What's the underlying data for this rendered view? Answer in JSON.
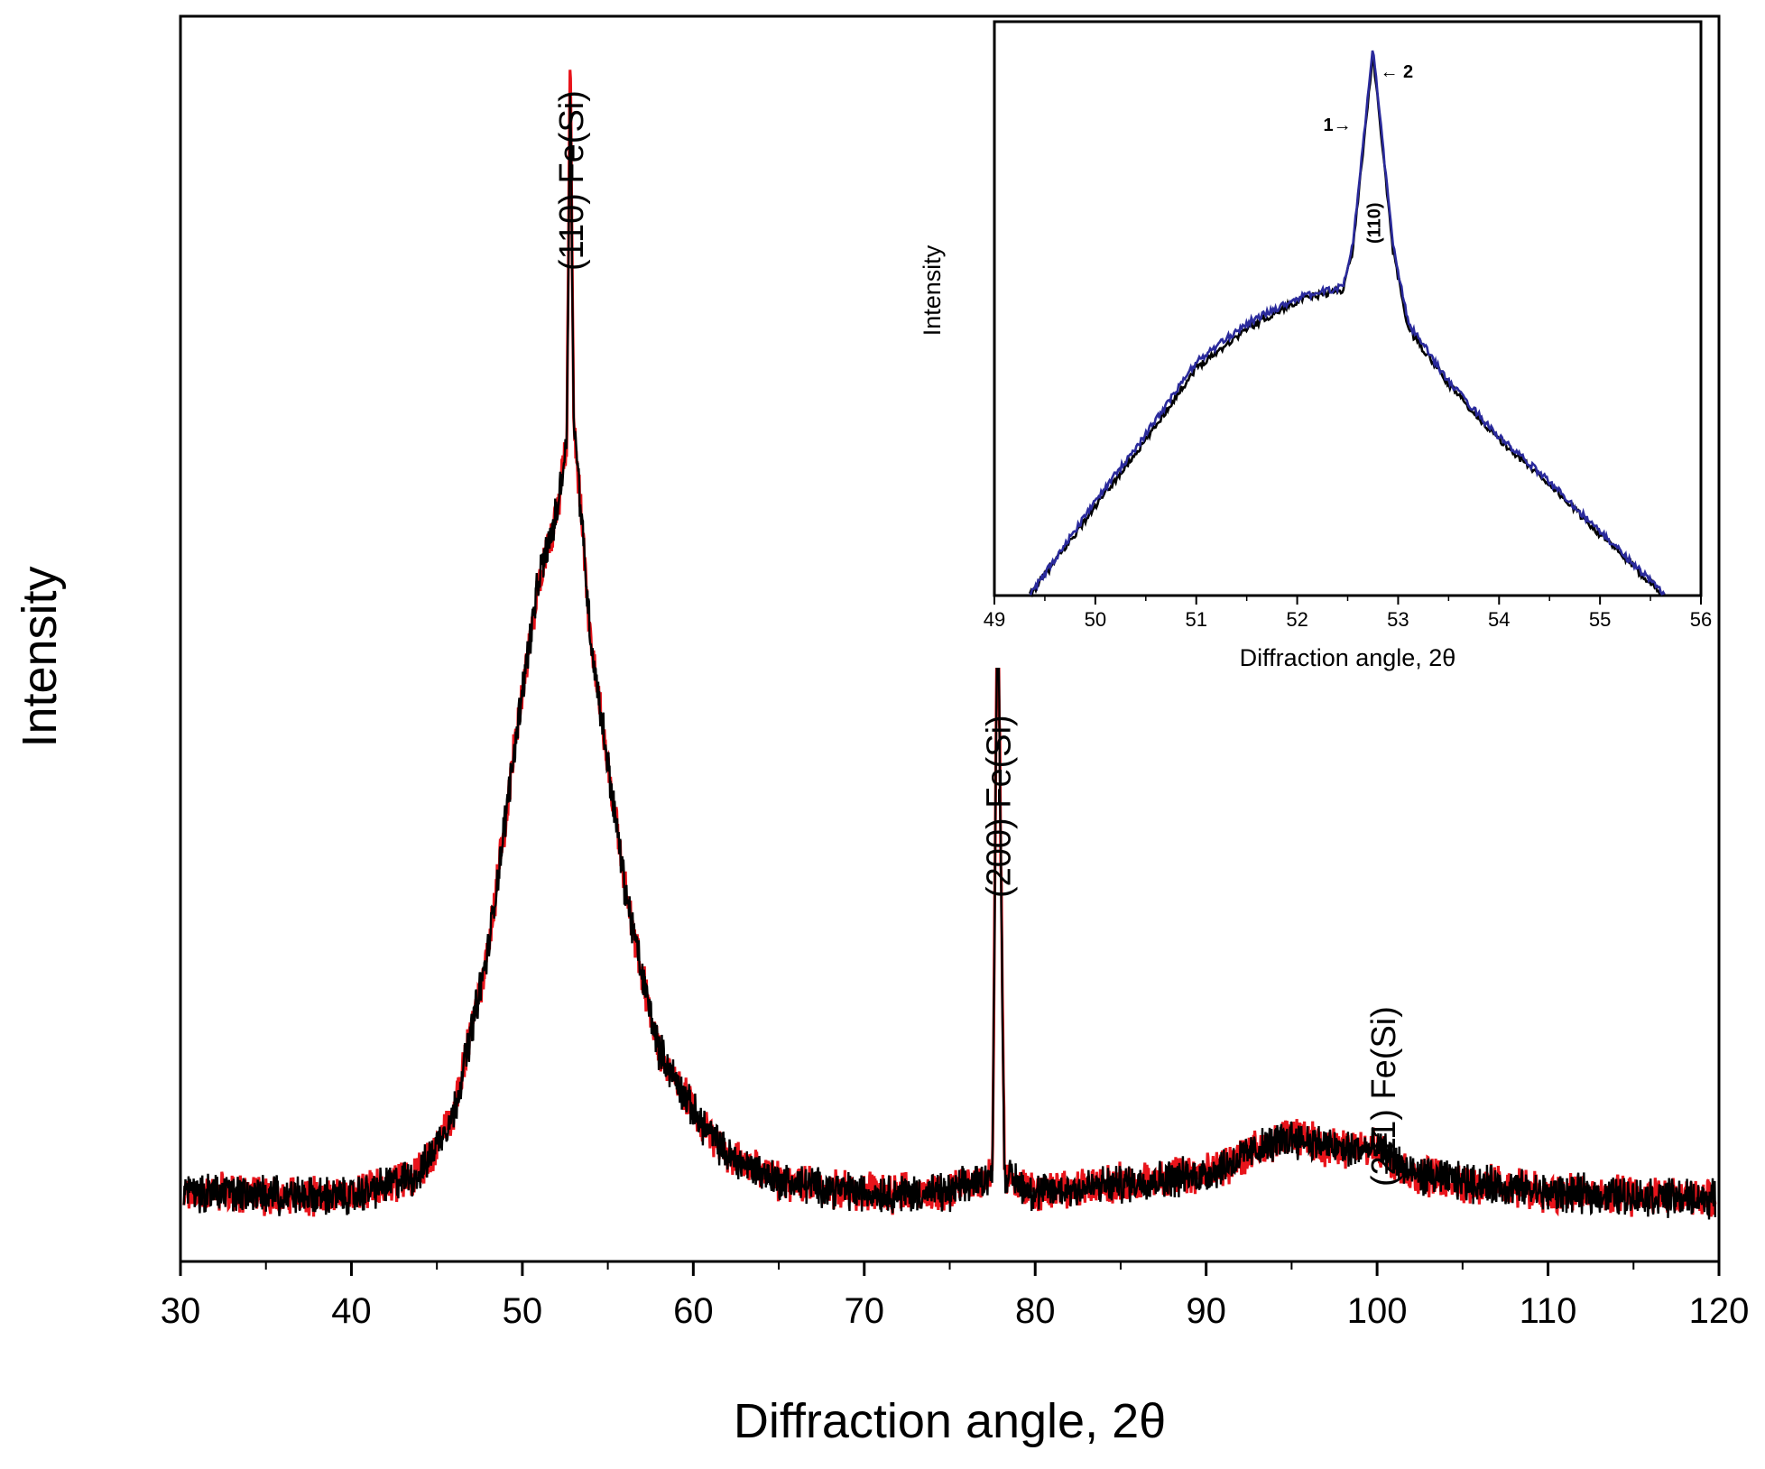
{
  "chart_data": [
    {
      "id": "main",
      "type": "line",
      "xlabel": "Diffraction angle, 2θ",
      "ylabel": "Intensity",
      "xlim": [
        30,
        120
      ],
      "ylim": [
        0,
        1
      ],
      "x_ticks": [
        30,
        40,
        50,
        60,
        70,
        80,
        90,
        100,
        110,
        120
      ],
      "y_ticks_shown": false,
      "grid": false,
      "series": [
        {
          "name": "red",
          "color": "#e8141b",
          "points": [
            [
              30,
              0.055
            ],
            [
              40,
              0.052
            ],
            [
              44,
              0.07
            ],
            [
              46,
              0.12
            ],
            [
              48,
              0.25
            ],
            [
              50,
              0.46
            ],
            [
              51,
              0.55
            ],
            [
              52,
              0.6
            ],
            [
              52.6,
              0.66
            ],
            [
              52.8,
              0.98
            ],
            [
              53,
              0.68
            ],
            [
              54,
              0.5
            ],
            [
              55,
              0.4
            ],
            [
              56,
              0.3
            ],
            [
              57,
              0.23
            ],
            [
              58,
              0.17
            ],
            [
              60,
              0.12
            ],
            [
              62,
              0.085
            ],
            [
              65,
              0.065
            ],
            [
              70,
              0.055
            ],
            [
              75,
              0.055
            ],
            [
              77.5,
              0.07
            ],
            [
              77.8,
              0.57
            ],
            [
              78.2,
              0.07
            ],
            [
              80,
              0.055
            ],
            [
              90,
              0.07
            ],
            [
              93,
              0.09
            ],
            [
              95,
              0.1
            ],
            [
              98,
              0.09
            ],
            [
              100.3,
              0.09
            ],
            [
              102,
              0.07
            ],
            [
              110,
              0.055
            ],
            [
              120,
              0.05
            ]
          ]
        },
        {
          "name": "black",
          "color": "#000000",
          "points": [
            [
              30,
              0.055
            ],
            [
              40,
              0.052
            ],
            [
              44,
              0.07
            ],
            [
              46,
              0.12
            ],
            [
              48,
              0.25
            ],
            [
              50,
              0.46
            ],
            [
              51,
              0.55
            ],
            [
              52,
              0.6
            ],
            [
              52.6,
              0.66
            ],
            [
              52.8,
              0.96
            ],
            [
              53,
              0.68
            ],
            [
              54,
              0.5
            ],
            [
              55,
              0.4
            ],
            [
              56,
              0.3
            ],
            [
              57,
              0.23
            ],
            [
              58,
              0.17
            ],
            [
              60,
              0.12
            ],
            [
              62,
              0.085
            ],
            [
              65,
              0.065
            ],
            [
              70,
              0.055
            ],
            [
              75,
              0.055
            ],
            [
              77.5,
              0.07
            ],
            [
              77.8,
              0.56
            ],
            [
              78.2,
              0.07
            ],
            [
              80,
              0.055
            ],
            [
              90,
              0.07
            ],
            [
              93,
              0.09
            ],
            [
              95,
              0.1
            ],
            [
              98,
              0.09
            ],
            [
              100.3,
              0.09
            ],
            [
              102,
              0.07
            ],
            [
              110,
              0.055
            ],
            [
              120,
              0.05
            ]
          ]
        }
      ],
      "annotations": [
        {
          "text": "(110)  Fe(Si)",
          "x": 52.8
        },
        {
          "text": "(200)  Fe(Si)",
          "x": 77.8
        },
        {
          "text": "(211)  Fe(Si)",
          "x": 100.3
        }
      ]
    },
    {
      "id": "inset",
      "type": "line",
      "xlabel": "Diffraction angle, 2θ",
      "ylabel": "Intensity",
      "xlim": [
        49,
        56
      ],
      "ylim": [
        0,
        1
      ],
      "x_ticks": [
        49,
        50,
        51,
        52,
        53,
        54,
        55,
        56
      ],
      "y_ticks_shown": false,
      "grid": false,
      "series": [
        {
          "name": "1",
          "color": "#000000",
          "points": [
            [
              49.35,
              0.0
            ],
            [
              50,
              0.16
            ],
            [
              50.5,
              0.28
            ],
            [
              51,
              0.41
            ],
            [
              51.5,
              0.48
            ],
            [
              52,
              0.53
            ],
            [
              52.2,
              0.54
            ],
            [
              52.45,
              0.55
            ],
            [
              52.55,
              0.62
            ],
            [
              52.75,
              0.975
            ],
            [
              52.95,
              0.62
            ],
            [
              53.1,
              0.48
            ],
            [
              53.5,
              0.38
            ],
            [
              54,
              0.28
            ],
            [
              54.5,
              0.2
            ],
            [
              55,
              0.11
            ],
            [
              55.4,
              0.04
            ],
            [
              55.65,
              0.0
            ]
          ]
        },
        {
          "name": "2",
          "color": "#2a2a9c",
          "points": [
            [
              49.35,
              0.0
            ],
            [
              50,
              0.17
            ],
            [
              50.5,
              0.29
            ],
            [
              51,
              0.42
            ],
            [
              51.5,
              0.49
            ],
            [
              52,
              0.535
            ],
            [
              52.2,
              0.545
            ],
            [
              52.45,
              0.555
            ],
            [
              52.55,
              0.63
            ],
            [
              52.75,
              0.985
            ],
            [
              52.95,
              0.63
            ],
            [
              53.1,
              0.49
            ],
            [
              53.5,
              0.385
            ],
            [
              54,
              0.285
            ],
            [
              54.5,
              0.205
            ],
            [
              55,
              0.115
            ],
            [
              55.4,
              0.045
            ],
            [
              55.65,
              0.0
            ]
          ]
        }
      ],
      "annotations": [
        {
          "text": "1→",
          "x": 52.75
        },
        {
          "text": "← 2",
          "x": 52.75
        },
        {
          "text": "(110)",
          "x": 52.75
        }
      ]
    }
  ]
}
